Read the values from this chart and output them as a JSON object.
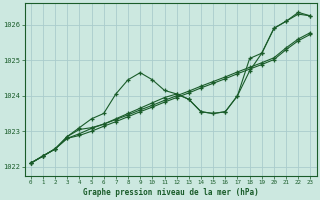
{
  "bg_color": "#cce8e0",
  "grid_color": "#aacccc",
  "line_color": "#1a5c2a",
  "text_color": "#1a5c2a",
  "xlabel": "Graphe pression niveau de la mer (hPa)",
  "xlim": [
    -0.5,
    23.5
  ],
  "ylim": [
    1021.75,
    1026.6
  ],
  "yticks": [
    1022,
    1023,
    1024,
    1025,
    1026
  ],
  "xticks": [
    0,
    1,
    2,
    3,
    4,
    5,
    6,
    7,
    8,
    9,
    10,
    11,
    12,
    13,
    14,
    15,
    16,
    17,
    18,
    19,
    20,
    21,
    22,
    23
  ],
  "line1_y": [
    1022.1,
    1022.3,
    1022.5,
    1022.85,
    1023.1,
    1023.35,
    1023.5,
    1024.05,
    1024.45,
    1024.65,
    1024.45,
    1024.15,
    1024.05,
    1023.9,
    1023.55,
    1023.5,
    1023.55,
    1024.0,
    1025.05,
    1025.2,
    1025.9,
    1026.1,
    1026.35,
    1026.25
  ],
  "line2_y": [
    1022.1,
    1022.3,
    1022.5,
    1022.85,
    1023.05,
    1023.1,
    1023.2,
    1023.35,
    1023.5,
    1023.65,
    1023.8,
    1023.95,
    1024.05,
    1023.9,
    1023.55,
    1023.5,
    1023.55,
    1024.0,
    1024.7,
    1025.2,
    1025.9,
    1026.1,
    1026.3,
    1026.25
  ],
  "line3_y": [
    1022.1,
    1022.3,
    1022.5,
    1022.8,
    1022.93,
    1023.08,
    1023.2,
    1023.33,
    1023.46,
    1023.6,
    1023.73,
    1023.87,
    1024.0,
    1024.13,
    1024.27,
    1024.4,
    1024.53,
    1024.67,
    1024.8,
    1024.93,
    1025.07,
    1025.35,
    1025.6,
    1025.78
  ],
  "line4_y": [
    1022.1,
    1022.3,
    1022.5,
    1022.8,
    1022.88,
    1023.0,
    1023.14,
    1023.27,
    1023.41,
    1023.55,
    1023.68,
    1023.82,
    1023.95,
    1024.08,
    1024.22,
    1024.35,
    1024.48,
    1024.62,
    1024.75,
    1024.88,
    1025.02,
    1025.3,
    1025.55,
    1025.73
  ]
}
